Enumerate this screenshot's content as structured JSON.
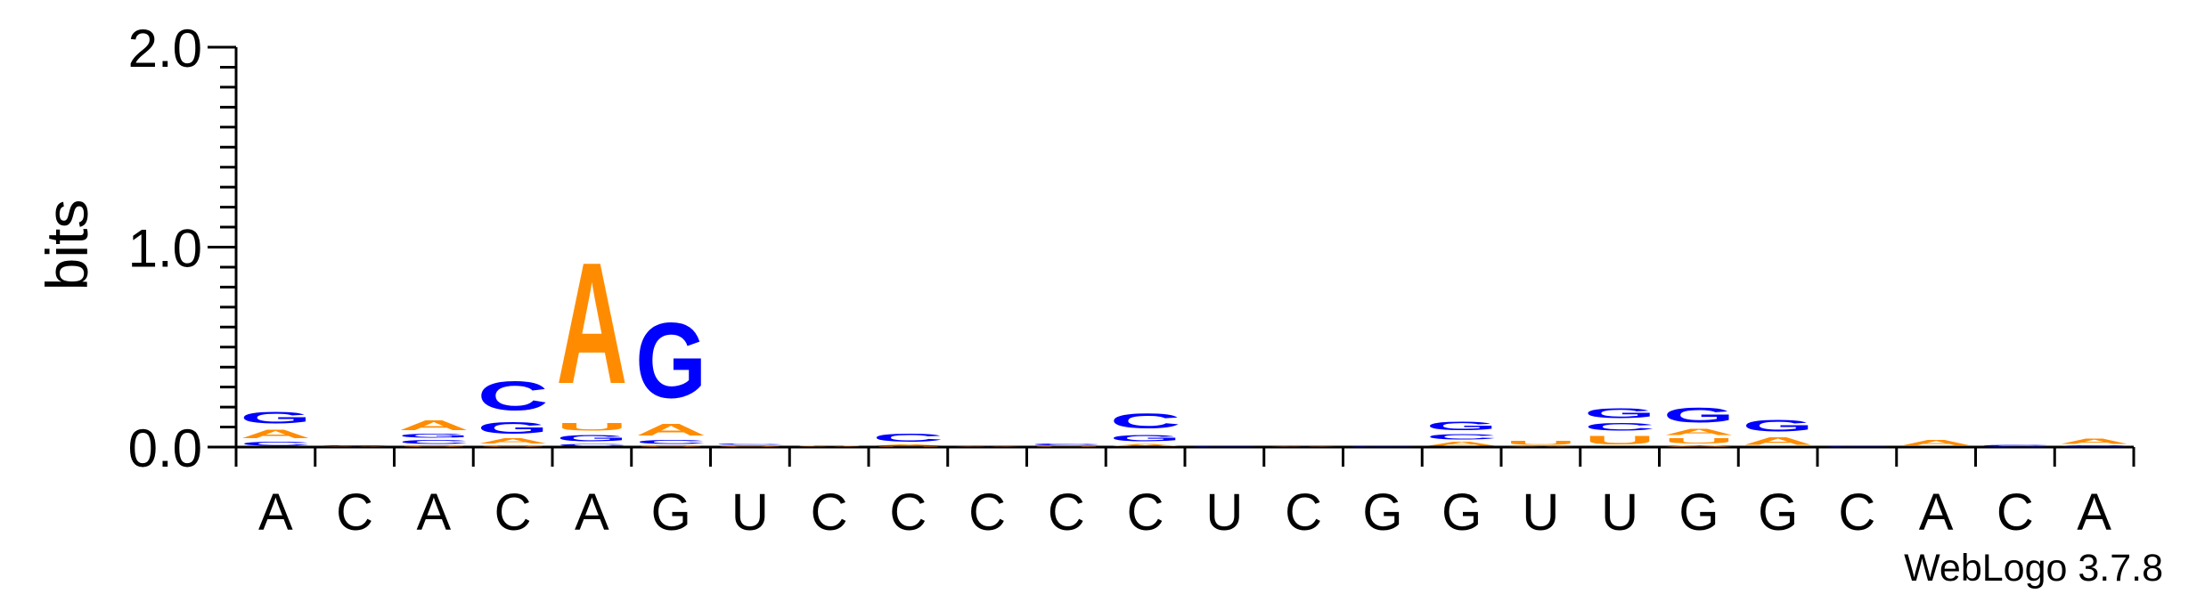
{
  "chart_data": {
    "type": "sequence-logo",
    "ylabel": "bits",
    "ylim": [
      0,
      2.0
    ],
    "yticks": [
      {
        "value": 0.0,
        "label": "0.0"
      },
      {
        "value": 1.0,
        "label": "1.0"
      },
      {
        "value": 2.0,
        "label": "2.0"
      }
    ],
    "x_labels": [
      "A",
      "C",
      "A",
      "C",
      "A",
      "G",
      "U",
      "C",
      "C",
      "C",
      "C",
      "C",
      "U",
      "C",
      "G",
      "G",
      "U",
      "U",
      "G",
      "G",
      "C",
      "A",
      "C",
      "A"
    ],
    "colors": {
      "A": "#ff8c00",
      "U": "#ff8c00",
      "C": "#0000ff",
      "G": "#0000ff"
    },
    "stacks": [
      [
        {
          "letter": "C",
          "height": 0.03
        },
        {
          "letter": "A",
          "height": 0.07
        },
        {
          "letter": "G",
          "height": 0.09
        }
      ],
      [
        {
          "letter": "A",
          "height": 0.005
        },
        {
          "letter": "C",
          "height": 0.005
        }
      ],
      [
        {
          "letter": "U",
          "height": 0.01
        },
        {
          "letter": "C",
          "height": 0.03
        },
        {
          "letter": "G",
          "height": 0.03
        },
        {
          "letter": "A",
          "height": 0.08
        }
      ],
      [
        {
          "letter": "U",
          "height": 0.01
        },
        {
          "letter": "A",
          "height": 0.04
        },
        {
          "letter": "G",
          "height": 0.09
        },
        {
          "letter": "C",
          "height": 0.23
        }
      ],
      [
        {
          "letter": "C",
          "height": 0.02
        },
        {
          "letter": "G",
          "height": 0.05
        },
        {
          "letter": "U",
          "height": 0.06
        },
        {
          "letter": "A",
          "height": 0.97
        }
      ],
      [
        {
          "letter": "U",
          "height": 0.01
        },
        {
          "letter": "C",
          "height": 0.03
        },
        {
          "letter": "A",
          "height": 0.09
        },
        {
          "letter": "G",
          "height": 0.6
        }
      ],
      [
        {
          "letter": "U",
          "height": 0.01
        },
        {
          "letter": "C",
          "height": 0.01
        }
      ],
      [
        {
          "letter": "A",
          "height": 0.003
        },
        {
          "letter": "U",
          "height": 0.003
        }
      ],
      [
        {
          "letter": "U",
          "height": 0.005
        },
        {
          "letter": "A",
          "height": 0.01
        },
        {
          "letter": "C",
          "height": 0.065
        }
      ],
      [
        {
          "letter": "A",
          "height": 0.003
        },
        {
          "letter": "C",
          "height": 0.003
        }
      ],
      [
        {
          "letter": "U",
          "height": 0.005
        },
        {
          "letter": "C",
          "height": 0.015
        }
      ],
      [
        {
          "letter": "A",
          "height": 0.02
        },
        {
          "letter": "G",
          "height": 0.05
        },
        {
          "letter": "C",
          "height": 0.12
        }
      ],
      [
        {
          "letter": "C",
          "height": 0.004
        }
      ],
      [
        {
          "letter": "A",
          "height": 0.003
        },
        {
          "letter": "C",
          "height": 0.006
        }
      ],
      [
        {
          "letter": "G",
          "height": 0.003
        }
      ],
      [
        {
          "letter": "A",
          "height": 0.03
        },
        {
          "letter": "C",
          "height": 0.04
        },
        {
          "letter": "G",
          "height": 0.07
        }
      ],
      [
        {
          "letter": "A",
          "height": 0.005
        },
        {
          "letter": "U",
          "height": 0.03
        }
      ],
      [
        {
          "letter": "U",
          "height": 0.07
        },
        {
          "letter": "C",
          "height": 0.06
        },
        {
          "letter": "G",
          "height": 0.08
        }
      ],
      [
        {
          "letter": "A",
          "height": 0.01
        },
        {
          "letter": "U",
          "height": 0.04
        },
        {
          "letter": "A",
          "height": 0.05
        },
        {
          "letter": "G",
          "height": 0.12
        }
      ],
      [
        {
          "letter": "A",
          "height": 0.06
        },
        {
          "letter": "G",
          "height": 0.09
        }
      ],
      [
        {
          "letter": "C",
          "height": 0.004
        }
      ],
      [
        {
          "letter": "A",
          "height": 0.04
        }
      ],
      [
        {
          "letter": "C",
          "height": 0.015
        }
      ],
      [
        {
          "letter": "C",
          "height": 0.008
        },
        {
          "letter": "A",
          "height": 0.04
        }
      ]
    ]
  },
  "footer": {
    "credit": "WebLogo 3.7.8"
  }
}
